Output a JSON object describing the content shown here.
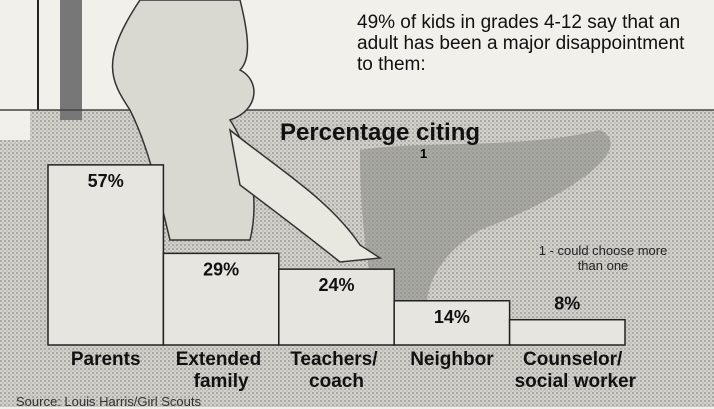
{
  "chart_data": {
    "type": "bar",
    "title": "Percentage citing",
    "title_footnote_marker": "1",
    "subtitle": "49% of kids in grades 4-12 say that an adult has been a major disappointment to them:",
    "footnote": "1 - could choose more than one",
    "source": "Source: Louis Harris/Girl Scouts",
    "categories": [
      "Parents",
      "Extended family",
      "Teachers/ coach",
      "Neighbor",
      "Counselor/ social worker"
    ],
    "values": [
      57,
      29,
      24,
      14,
      8
    ],
    "value_labels": [
      "57%",
      "29%",
      "24%",
      "14%",
      "8%"
    ],
    "color": "#e6e5df"
  }
}
